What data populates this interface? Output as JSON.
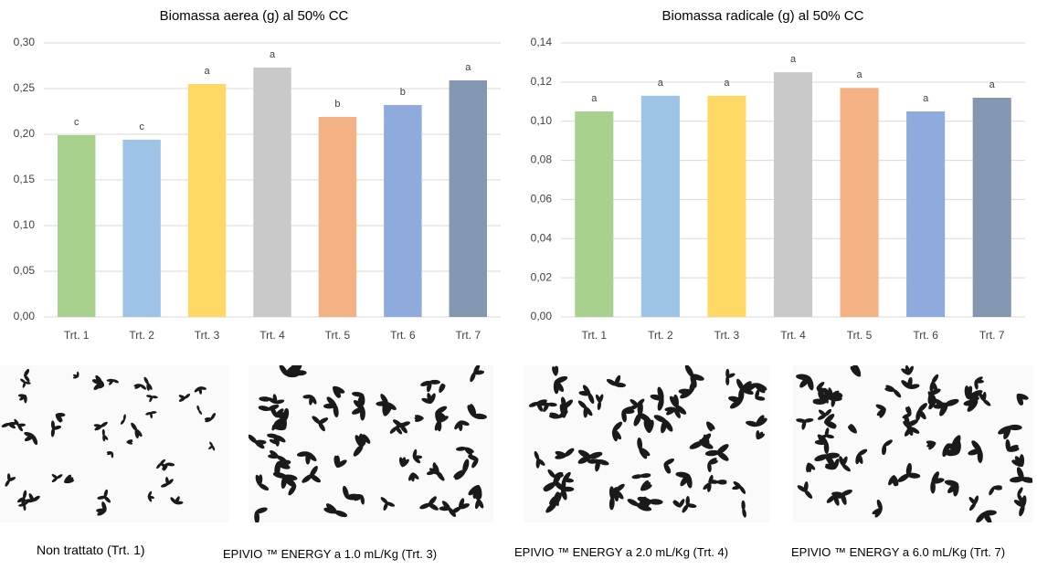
{
  "chart_data": [
    {
      "type": "bar",
      "title": "Biomassa aerea (g) al 50% CC",
      "categories": [
        "Trt. 1",
        "Trt. 2",
        "Trt. 3",
        "Trt. 4",
        "Trt. 5",
        "Trt. 6",
        "Trt. 7"
      ],
      "values": [
        0.199,
        0.194,
        0.255,
        0.273,
        0.219,
        0.232,
        0.259
      ],
      "annotations": [
        "c",
        "c",
        "a",
        "a",
        "b",
        "b",
        "a"
      ],
      "colors": [
        "#a9d18e",
        "#9dc3e6",
        "#ffd966",
        "#c9c9c9",
        "#f4b183",
        "#8faadc",
        "#8497b0"
      ],
      "ylim": [
        0,
        0.3
      ],
      "yticks": [
        {
          "value": 0,
          "label": "0,00"
        },
        {
          "value": 0.05,
          "label": "0,05"
        },
        {
          "value": 0.1,
          "label": "0,10"
        },
        {
          "value": 0.15,
          "label": "0,15"
        },
        {
          "value": 0.2,
          "label": "0,20"
        },
        {
          "value": 0.25,
          "label": "0,25"
        },
        {
          "value": 0.3,
          "label": "0,30"
        }
      ],
      "grid": true
    },
    {
      "type": "bar",
      "title": "Biomassa radicale (g) al 50% CC",
      "categories": [
        "Trt. 1",
        "Trt. 2",
        "Trt. 3",
        "Trt. 4",
        "Trt. 5",
        "Trt. 6",
        "Trt. 7"
      ],
      "values": [
        0.105,
        0.113,
        0.113,
        0.125,
        0.117,
        0.105,
        0.112
      ],
      "annotations": [
        "a",
        "a",
        "a",
        "a",
        "a",
        "a",
        "a"
      ],
      "colors": [
        "#a9d18e",
        "#9dc3e6",
        "#ffd966",
        "#c9c9c9",
        "#f4b183",
        "#8faadc",
        "#8497b0"
      ],
      "ylim": [
        0,
        0.14
      ],
      "yticks": [
        {
          "value": 0,
          "label": "0,00"
        },
        {
          "value": 0.02,
          "label": "0,02"
        },
        {
          "value": 0.04,
          "label": "0,04"
        },
        {
          "value": 0.06,
          "label": "0,06"
        },
        {
          "value": 0.08,
          "label": "0,08"
        },
        {
          "value": 0.1,
          "label": "0,10"
        },
        {
          "value": 0.12,
          "label": "0,12"
        },
        {
          "value": 0.14,
          "label": "0,14"
        }
      ],
      "grid": true
    }
  ],
  "photos": [
    {
      "caption": "Non trattato (Trt. 1)"
    },
    {
      "caption": "EPIVIO ™ ENERGY a  1.0 mL/Kg (Trt. 3)"
    },
    {
      "caption": "EPIVIO ™ ENERGY a  2.0 mL/Kg (Trt. 4)"
    },
    {
      "caption": "EPIVIO ™ ENERGY a  6.0 mL/Kg (Trt. 7)"
    }
  ]
}
